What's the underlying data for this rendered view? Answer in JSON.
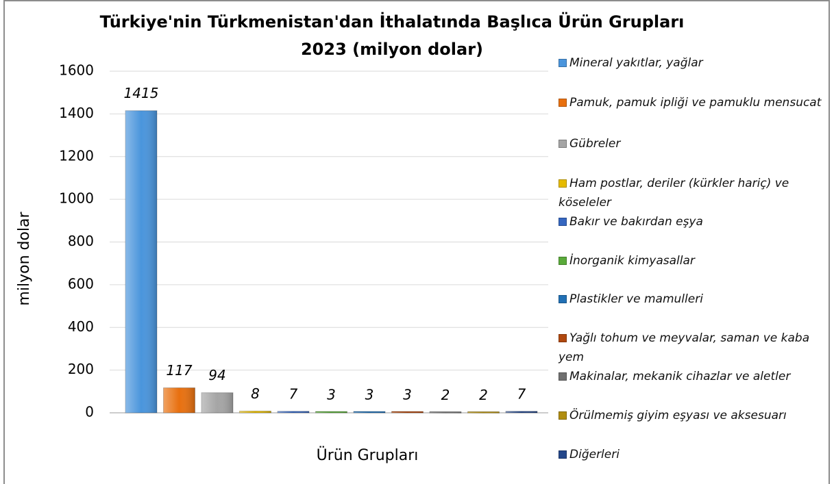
{
  "chart_data": {
    "type": "bar",
    "title": "Türkiye'nin Türkmenistan'dan İthalatında Başlıca Ürün Grupları",
    "subtitle": "2023 (milyon dolar)",
    "y_label": "milyon dolar",
    "x_label": "Ürün Grupları",
    "ylim": [
      0,
      1600
    ],
    "yticks": [
      0,
      200,
      400,
      600,
      800,
      1000,
      1200,
      1400,
      1600
    ],
    "grid": true,
    "series": [
      {
        "name": "Mineral yakıtlar, yağlar",
        "color": "#4a95dc",
        "values": [
          1415
        ]
      },
      {
        "name": "Pamuk, pamuk ipliği ve pamuklu mensucat",
        "color": "#e8700f",
        "values": [
          117
        ]
      },
      {
        "name": "Gübreler",
        "color": "#a5a5a5",
        "values": [
          94
        ]
      },
      {
        "name": "Ham postlar, deriler (kürkler hariç) ve köseleler",
        "color": "#e6bb00",
        "values": [
          8
        ]
      },
      {
        "name": "Bakır ve bakırdan eşya",
        "color": "#3566c0",
        "values": [
          7
        ]
      },
      {
        "name": "İnorganik kimyasallar",
        "color": "#5aaa3a",
        "values": [
          3
        ]
      },
      {
        "name": "Plastikler ve mamulleri",
        "color": "#2170b5",
        "values": [
          3
        ]
      },
      {
        "name": "Yağlı tohum ve meyvalar, saman ve kaba yem",
        "color": "#b0480e",
        "values": [
          3
        ]
      },
      {
        "name": "Makinalar, mekanik cihazlar ve aletler",
        "color": "#707070",
        "values": [
          2
        ]
      },
      {
        "name": "Örülmemiş giyim eşyası ve aksesuarı",
        "color": "#b08d10",
        "values": [
          2
        ]
      },
      {
        "name": "Diğerleri",
        "color": "#24478a",
        "values": [
          7
        ]
      }
    ]
  }
}
